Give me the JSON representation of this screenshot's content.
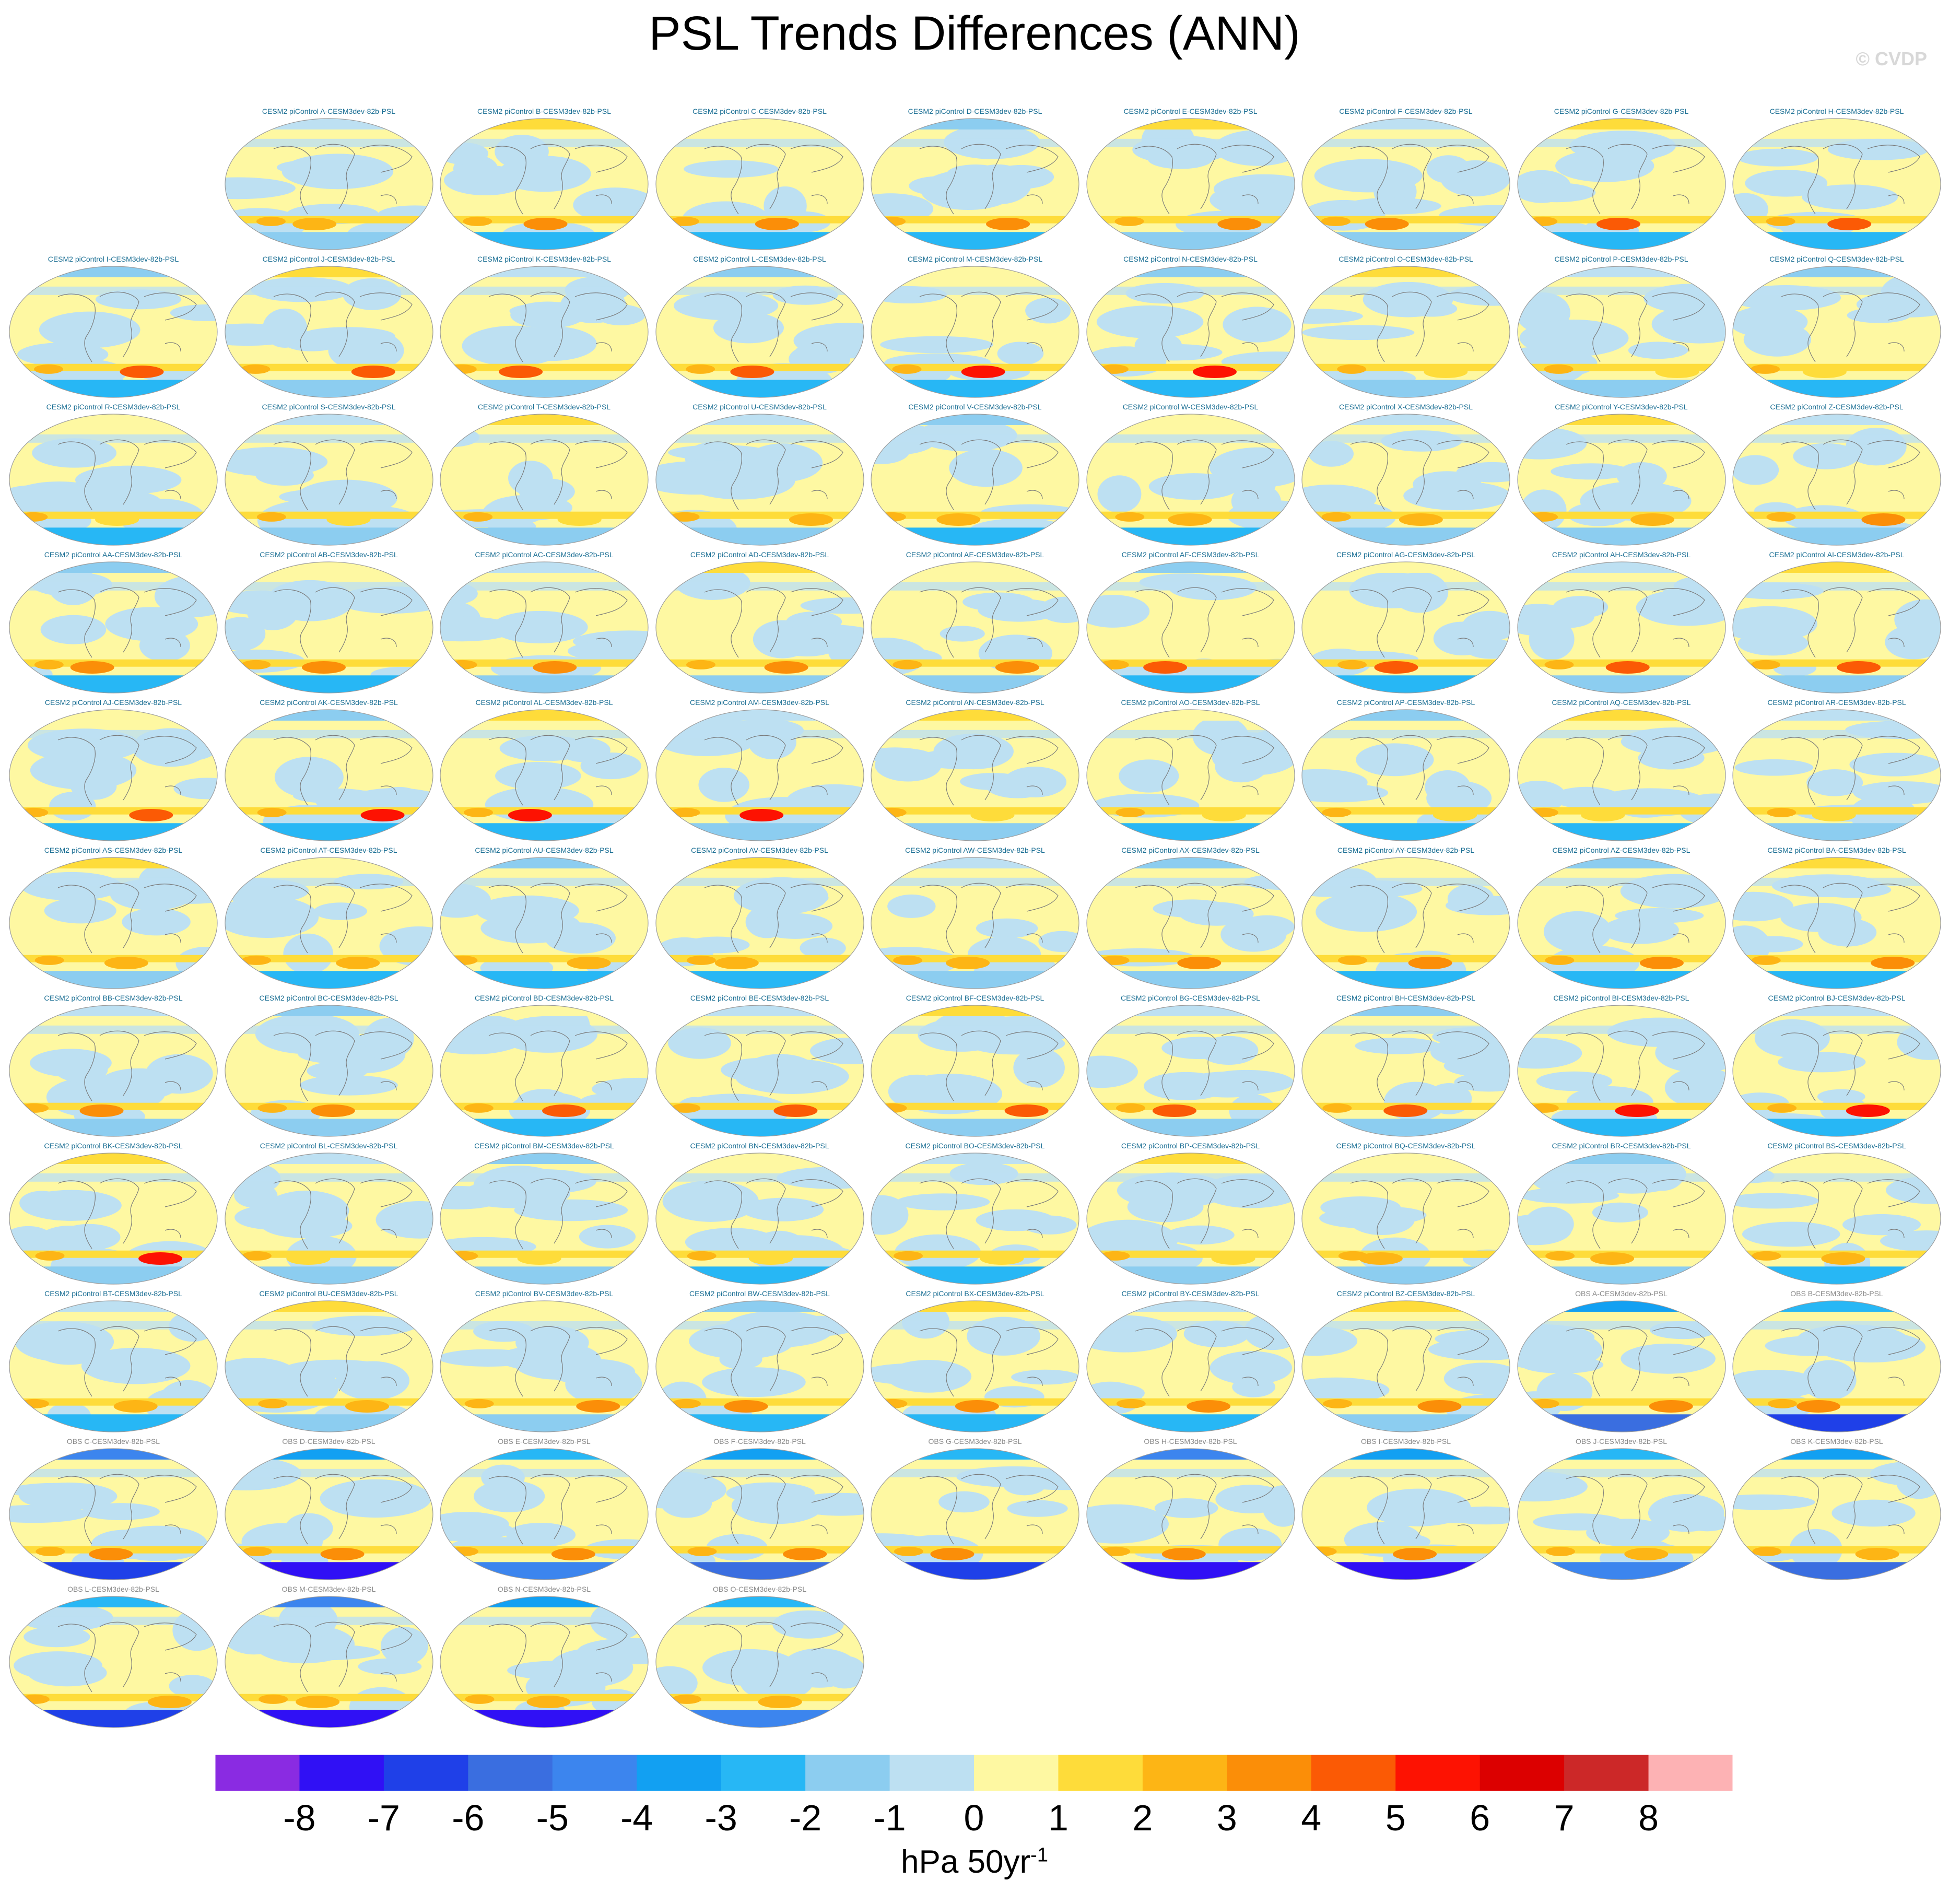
{
  "title": "PSL Trends Differences (ANN)",
  "copyright": "© CVDP",
  "chart_data": {
    "type": "heatmap",
    "title": "PSL Trends Differences (ANN)",
    "colorbar": {
      "label": "hPa 50yr",
      "label_superscript": "-1",
      "ticks": [
        "-8",
        "-7",
        "-6",
        "-5",
        "-4",
        "-3",
        "-2",
        "-1",
        "0",
        "1",
        "2",
        "3",
        "4",
        "5",
        "6",
        "7",
        "8"
      ],
      "colors": [
        "#8a2be2",
        "#3010f5",
        "#1f40e8",
        "#3a6ee0",
        "#3c85ee",
        "#12a0f2",
        "#27b7f5",
        "#8ccdf0",
        "#bde0f2",
        "#fef8a2",
        "#fedc3a",
        "#fdb515",
        "#fb8e08",
        "#fb5a05",
        "#fd1202",
        "#dc0000",
        "#cc2828",
        "#fdb2b4"
      ],
      "range": [
        -9,
        9
      ]
    },
    "panels": [
      {
        "label": "CESM2 piControl A-CESM3dev-82b-PSL",
        "group": "cesm"
      },
      {
        "label": "CESM2 piControl B-CESM3dev-82b-PSL",
        "group": "cesm"
      },
      {
        "label": "CESM2 piControl C-CESM3dev-82b-PSL",
        "group": "cesm"
      },
      {
        "label": "CESM2 piControl D-CESM3dev-82b-PSL",
        "group": "cesm"
      },
      {
        "label": "CESM2 piControl E-CESM3dev-82b-PSL",
        "group": "cesm"
      },
      {
        "label": "CESM2 piControl F-CESM3dev-82b-PSL",
        "group": "cesm"
      },
      {
        "label": "CESM2 piControl G-CESM3dev-82b-PSL",
        "group": "cesm"
      },
      {
        "label": "CESM2 piControl H-CESM3dev-82b-PSL",
        "group": "cesm"
      },
      {
        "label": "CESM2 piControl I-CESM3dev-82b-PSL",
        "group": "cesm"
      },
      {
        "label": "CESM2 piControl J-CESM3dev-82b-PSL",
        "group": "cesm"
      },
      {
        "label": "CESM2 piControl K-CESM3dev-82b-PSL",
        "group": "cesm"
      },
      {
        "label": "CESM2 piControl L-CESM3dev-82b-PSL",
        "group": "cesm"
      },
      {
        "label": "CESM2 piControl M-CESM3dev-82b-PSL",
        "group": "cesm"
      },
      {
        "label": "CESM2 piControl N-CESM3dev-82b-PSL",
        "group": "cesm"
      },
      {
        "label": "CESM2 piControl O-CESM3dev-82b-PSL",
        "group": "cesm"
      },
      {
        "label": "CESM2 piControl P-CESM3dev-82b-PSL",
        "group": "cesm"
      },
      {
        "label": "CESM2 piControl Q-CESM3dev-82b-PSL",
        "group": "cesm"
      },
      {
        "label": "CESM2 piControl R-CESM3dev-82b-PSL",
        "group": "cesm"
      },
      {
        "label": "CESM2 piControl S-CESM3dev-82b-PSL",
        "group": "cesm"
      },
      {
        "label": "CESM2 piControl T-CESM3dev-82b-PSL",
        "group": "cesm"
      },
      {
        "label": "CESM2 piControl U-CESM3dev-82b-PSL",
        "group": "cesm"
      },
      {
        "label": "CESM2 piControl V-CESM3dev-82b-PSL",
        "group": "cesm"
      },
      {
        "label": "CESM2 piControl W-CESM3dev-82b-PSL",
        "group": "cesm"
      },
      {
        "label": "CESM2 piControl X-CESM3dev-82b-PSL",
        "group": "cesm"
      },
      {
        "label": "CESM2 piControl Y-CESM3dev-82b-PSL",
        "group": "cesm"
      },
      {
        "label": "CESM2 piControl Z-CESM3dev-82b-PSL",
        "group": "cesm"
      },
      {
        "label": "CESM2 piControl AA-CESM3dev-82b-PSL",
        "group": "cesm"
      },
      {
        "label": "CESM2 piControl AB-CESM3dev-82b-PSL",
        "group": "cesm"
      },
      {
        "label": "CESM2 piControl AC-CESM3dev-82b-PSL",
        "group": "cesm"
      },
      {
        "label": "CESM2 piControl AD-CESM3dev-82b-PSL",
        "group": "cesm"
      },
      {
        "label": "CESM2 piControl AE-CESM3dev-82b-PSL",
        "group": "cesm"
      },
      {
        "label": "CESM2 piControl AF-CESM3dev-82b-PSL",
        "group": "cesm"
      },
      {
        "label": "CESM2 piControl AG-CESM3dev-82b-PSL",
        "group": "cesm"
      },
      {
        "label": "CESM2 piControl AH-CESM3dev-82b-PSL",
        "group": "cesm"
      },
      {
        "label": "CESM2 piControl AI-CESM3dev-82b-PSL",
        "group": "cesm"
      },
      {
        "label": "CESM2 piControl AJ-CESM3dev-82b-PSL",
        "group": "cesm"
      },
      {
        "label": "CESM2 piControl AK-CESM3dev-82b-PSL",
        "group": "cesm"
      },
      {
        "label": "CESM2 piControl AL-CESM3dev-82b-PSL",
        "group": "cesm"
      },
      {
        "label": "CESM2 piControl AM-CESM3dev-82b-PSL",
        "group": "cesm"
      },
      {
        "label": "CESM2 piControl AN-CESM3dev-82b-PSL",
        "group": "cesm"
      },
      {
        "label": "CESM2 piControl AO-CESM3dev-82b-PSL",
        "group": "cesm"
      },
      {
        "label": "CESM2 piControl AP-CESM3dev-82b-PSL",
        "group": "cesm"
      },
      {
        "label": "CESM2 piControl AQ-CESM3dev-82b-PSL",
        "group": "cesm"
      },
      {
        "label": "CESM2 piControl AR-CESM3dev-82b-PSL",
        "group": "cesm"
      },
      {
        "label": "CESM2 piControl AS-CESM3dev-82b-PSL",
        "group": "cesm"
      },
      {
        "label": "CESM2 piControl AT-CESM3dev-82b-PSL",
        "group": "cesm"
      },
      {
        "label": "CESM2 piControl AU-CESM3dev-82b-PSL",
        "group": "cesm"
      },
      {
        "label": "CESM2 piControl AV-CESM3dev-82b-PSL",
        "group": "cesm"
      },
      {
        "label": "CESM2 piControl AW-CESM3dev-82b-PSL",
        "group": "cesm"
      },
      {
        "label": "CESM2 piControl AX-CESM3dev-82b-PSL",
        "group": "cesm"
      },
      {
        "label": "CESM2 piControl AY-CESM3dev-82b-PSL",
        "group": "cesm"
      },
      {
        "label": "CESM2 piControl AZ-CESM3dev-82b-PSL",
        "group": "cesm"
      },
      {
        "label": "CESM2 piControl BA-CESM3dev-82b-PSL",
        "group": "cesm"
      },
      {
        "label": "CESM2 piControl BB-CESM3dev-82b-PSL",
        "group": "cesm"
      },
      {
        "label": "CESM2 piControl BC-CESM3dev-82b-PSL",
        "group": "cesm"
      },
      {
        "label": "CESM2 piControl BD-CESM3dev-82b-PSL",
        "group": "cesm"
      },
      {
        "label": "CESM2 piControl BE-CESM3dev-82b-PSL",
        "group": "cesm"
      },
      {
        "label": "CESM2 piControl BF-CESM3dev-82b-PSL",
        "group": "cesm"
      },
      {
        "label": "CESM2 piControl BG-CESM3dev-82b-PSL",
        "group": "cesm"
      },
      {
        "label": "CESM2 piControl BH-CESM3dev-82b-PSL",
        "group": "cesm"
      },
      {
        "label": "CESM2 piControl BI-CESM3dev-82b-PSL",
        "group": "cesm"
      },
      {
        "label": "CESM2 piControl BJ-CESM3dev-82b-PSL",
        "group": "cesm"
      },
      {
        "label": "CESM2 piControl BK-CESM3dev-82b-PSL",
        "group": "cesm"
      },
      {
        "label": "CESM2 piControl BL-CESM3dev-82b-PSL",
        "group": "cesm"
      },
      {
        "label": "CESM2 piControl BM-CESM3dev-82b-PSL",
        "group": "cesm"
      },
      {
        "label": "CESM2 piControl BN-CESM3dev-82b-PSL",
        "group": "cesm"
      },
      {
        "label": "CESM2 piControl BO-CESM3dev-82b-PSL",
        "group": "cesm"
      },
      {
        "label": "CESM2 piControl BP-CESM3dev-82b-PSL",
        "group": "cesm"
      },
      {
        "label": "CESM2 piControl BQ-CESM3dev-82b-PSL",
        "group": "cesm"
      },
      {
        "label": "CESM2 piControl BR-CESM3dev-82b-PSL",
        "group": "cesm"
      },
      {
        "label": "CESM2 piControl BS-CESM3dev-82b-PSL",
        "group": "cesm"
      },
      {
        "label": "CESM2 piControl BT-CESM3dev-82b-PSL",
        "group": "cesm"
      },
      {
        "label": "CESM2 piControl BU-CESM3dev-82b-PSL",
        "group": "cesm"
      },
      {
        "label": "CESM2 piControl BV-CESM3dev-82b-PSL",
        "group": "cesm"
      },
      {
        "label": "CESM2 piControl BW-CESM3dev-82b-PSL",
        "group": "cesm"
      },
      {
        "label": "CESM2 piControl BX-CESM3dev-82b-PSL",
        "group": "cesm"
      },
      {
        "label": "CESM2 piControl BY-CESM3dev-82b-PSL",
        "group": "cesm"
      },
      {
        "label": "CESM2 piControl BZ-CESM3dev-82b-PSL",
        "group": "cesm"
      },
      {
        "label": "OBS A-CESM3dev-82b-PSL",
        "group": "obs"
      },
      {
        "label": "OBS B-CESM3dev-82b-PSL",
        "group": "obs"
      },
      {
        "label": "OBS C-CESM3dev-82b-PSL",
        "group": "obs"
      },
      {
        "label": "OBS D-CESM3dev-82b-PSL",
        "group": "obs"
      },
      {
        "label": "OBS E-CESM3dev-82b-PSL",
        "group": "obs"
      },
      {
        "label": "OBS F-CESM3dev-82b-PSL",
        "group": "obs"
      },
      {
        "label": "OBS G-CESM3dev-82b-PSL",
        "group": "obs"
      },
      {
        "label": "OBS H-CESM3dev-82b-PSL",
        "group": "obs"
      },
      {
        "label": "OBS I-CESM3dev-82b-PSL",
        "group": "obs"
      },
      {
        "label": "OBS J-CESM3dev-82b-PSL",
        "group": "obs"
      },
      {
        "label": "OBS K-CESM3dev-82b-PSL",
        "group": "obs"
      },
      {
        "label": "OBS L-CESM3dev-82b-PSL",
        "group": "obs"
      },
      {
        "label": "OBS M-CESM3dev-82b-PSL",
        "group": "obs"
      },
      {
        "label": "OBS N-CESM3dev-82b-PSL",
        "group": "obs"
      },
      {
        "label": "OBS O-CESM3dev-82b-PSL",
        "group": "obs"
      }
    ]
  }
}
